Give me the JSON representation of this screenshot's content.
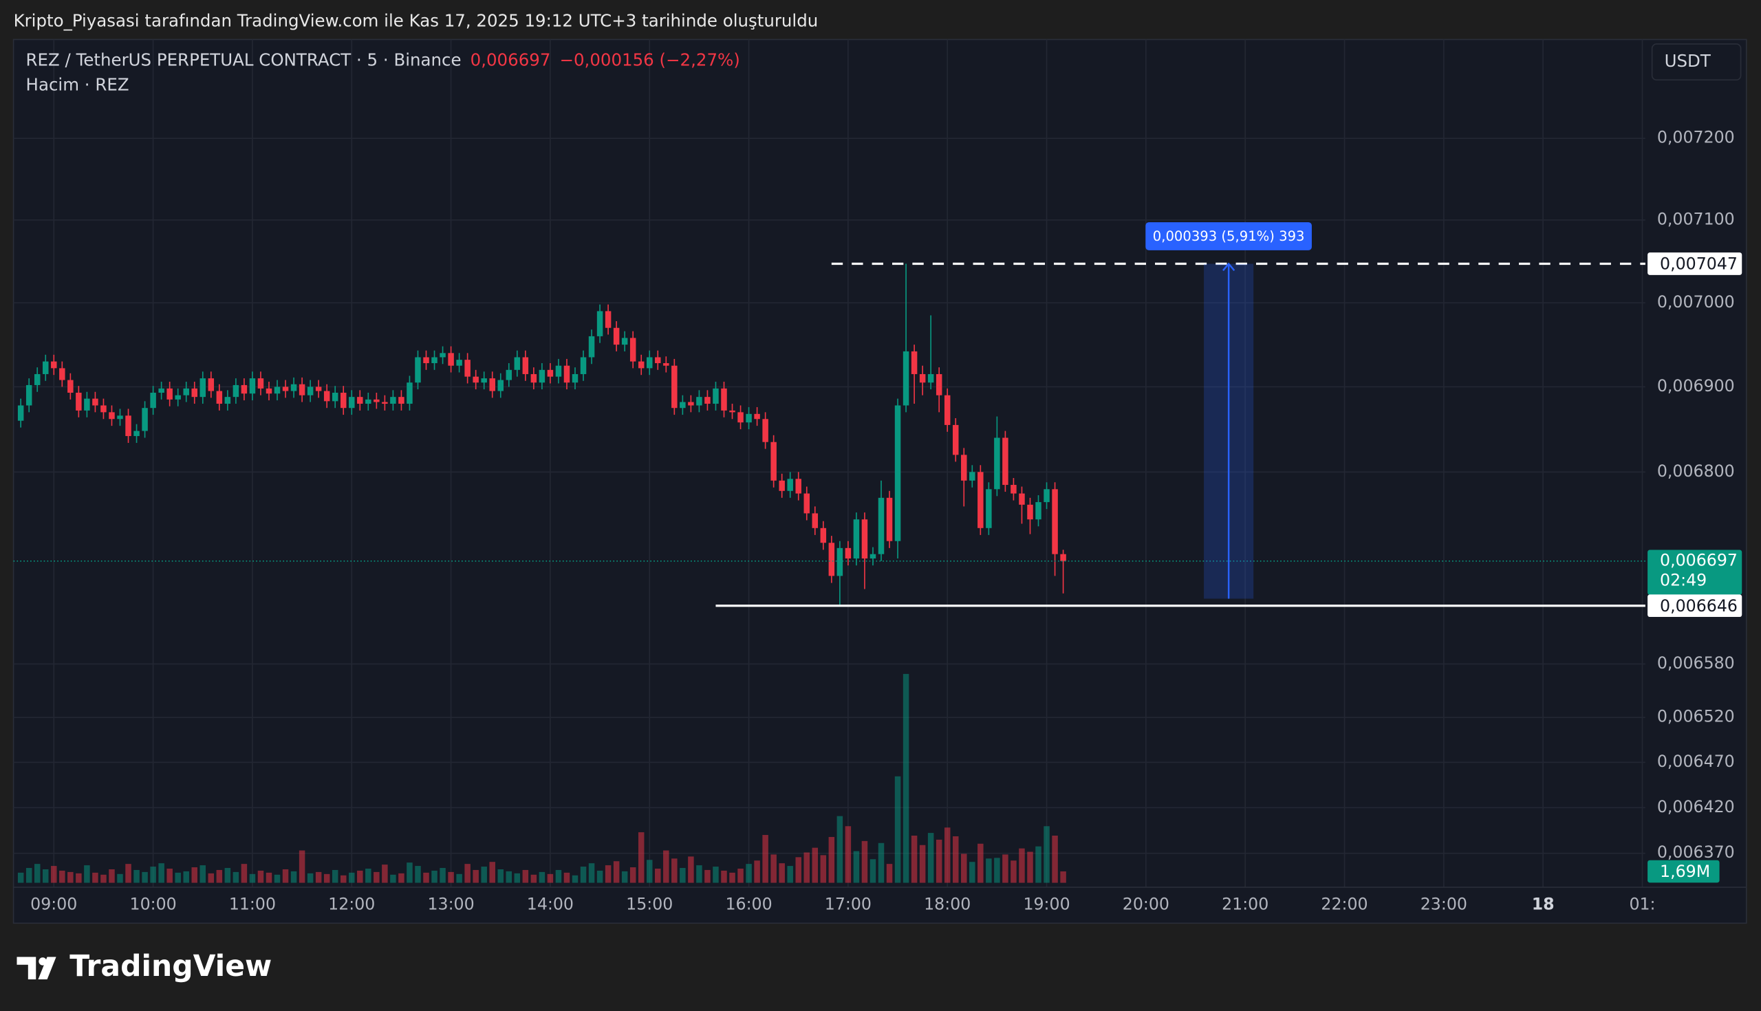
{
  "header": {
    "caption": "Kripto_Piyasasi tarafından TradingView.com ile Kas 17, 2025 19:12 UTC+3 tarihinde oluşturuldu"
  },
  "footer": {
    "brand": "TradingView"
  },
  "chart_data": {
    "type": "candlestick",
    "legend": {
      "symbol": "REZ / TetherUS PERPETUAL CONTRACT · 5 · Binance",
      "change": "−0,000156 (−2,27%)",
      "volume_title": "Hacim · REZ"
    },
    "currency": "USDT",
    "log_scale": true,
    "grid": true,
    "up_color": "#089981",
    "down_color": "#f23645",
    "xlim": [
      515.6,
      1501.8
    ],
    "xticks": [
      {
        "value": 540,
        "label": "09:00"
      },
      {
        "value": 600,
        "label": "10:00"
      },
      {
        "value": 660,
        "label": "11:00"
      },
      {
        "value": 720,
        "label": "12:00"
      },
      {
        "value": 780,
        "label": "13:00"
      },
      {
        "value": 840,
        "label": "14:00"
      },
      {
        "value": 900,
        "label": "15:00"
      },
      {
        "value": 960,
        "label": "16:00"
      },
      {
        "value": 1020,
        "label": "17:00"
      },
      {
        "value": 1080,
        "label": "18:00"
      },
      {
        "value": 1140,
        "label": "19:00"
      },
      {
        "value": 1200,
        "label": "20:00"
      },
      {
        "value": 1260,
        "label": "21:00"
      },
      {
        "value": 1320,
        "label": "22:00"
      },
      {
        "value": 1380,
        "label": "23:00"
      },
      {
        "value": 1440,
        "label": "18"
      },
      {
        "value": 1500,
        "label": "01:"
      }
    ],
    "ylim": [
      0.006333,
      0.007323
    ],
    "yticks": [
      {
        "value": 0.0072,
        "label": "0,007200"
      },
      {
        "value": 0.0071,
        "label": "0,007100"
      },
      {
        "value": 0.007,
        "label": "0,007000"
      },
      {
        "value": 0.0069,
        "label": "0,006900"
      },
      {
        "value": 0.0068,
        "label": "0,006800"
      },
      {
        "value": 0.00658,
        "label": "0,006580"
      },
      {
        "value": 0.00652,
        "label": "0,006520"
      },
      {
        "value": 0.00647,
        "label": "0,006470"
      },
      {
        "value": 0.00642,
        "label": "0,006420"
      },
      {
        "value": 0.00637,
        "label": "0,006370"
      }
    ],
    "x": [
      520,
      525,
      530,
      535,
      540,
      545,
      550,
      555,
      560,
      565,
      570,
      575,
      580,
      585,
      590,
      595,
      600,
      605,
      610,
      615,
      620,
      625,
      630,
      635,
      640,
      645,
      650,
      655,
      660,
      665,
      670,
      675,
      680,
      685,
      690,
      695,
      700,
      705,
      710,
      715,
      720,
      725,
      730,
      735,
      740,
      745,
      750,
      755,
      760,
      765,
      770,
      775,
      780,
      785,
      790,
      795,
      800,
      805,
      810,
      815,
      820,
      825,
      830,
      835,
      840,
      845,
      850,
      855,
      860,
      865,
      870,
      875,
      880,
      885,
      890,
      895,
      900,
      905,
      910,
      915,
      920,
      925,
      930,
      935,
      940,
      945,
      950,
      955,
      960,
      965,
      970,
      975,
      980,
      985,
      990,
      995,
      1000,
      1005,
      1010,
      1015,
      1020,
      1025,
      1030,
      1035,
      1040,
      1045,
      1050,
      1055,
      1060,
      1065,
      1070,
      1075,
      1080,
      1085,
      1090,
      1095,
      1100,
      1105,
      1110,
      1115,
      1120,
      1125,
      1130,
      1135,
      1140,
      1145,
      1150
    ],
    "open": [
      0.00686,
      0.006878,
      0.006902,
      0.006915,
      0.00693,
      0.006922,
      0.006908,
      0.006893,
      0.006872,
      0.006886,
      0.006878,
      0.00687,
      0.006862,
      0.006866,
      0.006842,
      0.006848,
      0.006875,
      0.006893,
      0.006898,
      0.006885,
      0.00689,
      0.006898,
      0.006888,
      0.00691,
      0.006895,
      0.00688,
      0.006888,
      0.006902,
      0.006892,
      0.00691,
      0.006898,
      0.006892,
      0.0069,
      0.006895,
      0.006903,
      0.00689,
      0.0069,
      0.006895,
      0.006883,
      0.006893,
      0.006875,
      0.006888,
      0.00688,
      0.006885,
      0.006882,
      0.00688,
      0.006888,
      0.00688,
      0.006905,
      0.006935,
      0.006928,
      0.006935,
      0.00694,
      0.006925,
      0.006932,
      0.006912,
      0.006905,
      0.00691,
      0.006895,
      0.006908,
      0.00692,
      0.006935,
      0.006915,
      0.006905,
      0.00692,
      0.006912,
      0.006925,
      0.006905,
      0.006915,
      0.006935,
      0.00696,
      0.00699,
      0.00697,
      0.00695,
      0.006958,
      0.00693,
      0.006922,
      0.006935,
      0.006928,
      0.006925,
      0.006875,
      0.006882,
      0.006878,
      0.006888,
      0.00688,
      0.006898,
      0.006872,
      0.00687,
      0.006858,
      0.006868,
      0.006862,
      0.006835,
      0.00679,
      0.006778,
      0.006792,
      0.006775,
      0.006752,
      0.006735,
      0.006718,
      0.00668,
      0.006712,
      0.0067,
      0.006745,
      0.0067,
      0.006705,
      0.00677,
      0.00672,
      0.006878,
      0.006942,
      0.006915,
      0.006905,
      0.006915,
      0.00689,
      0.006855,
      0.00682,
      0.00679,
      0.0068,
      0.006735,
      0.00678,
      0.00684,
      0.006785,
      0.006775,
      0.006762,
      0.006745,
      0.006765,
      0.00678,
      0.006705
    ],
    "high": [
      0.006886,
      0.00691,
      0.006923,
      0.006938,
      0.006938,
      0.00693,
      0.006916,
      0.006901,
      0.006894,
      0.006894,
      0.006886,
      0.006878,
      0.006874,
      0.006874,
      0.006856,
      0.006883,
      0.006901,
      0.006906,
      0.006906,
      0.006898,
      0.006906,
      0.006906,
      0.006918,
      0.006918,
      0.006903,
      0.006896,
      0.00691,
      0.00691,
      0.006918,
      0.006918,
      0.006906,
      0.006908,
      0.006908,
      0.006911,
      0.006911,
      0.006908,
      0.006908,
      0.006903,
      0.006901,
      0.006901,
      0.006896,
      0.006896,
      0.006893,
      0.006893,
      0.00689,
      0.006896,
      0.006896,
      0.006913,
      0.006943,
      0.006943,
      0.006943,
      0.006948,
      0.006948,
      0.00694,
      0.00694,
      0.00692,
      0.006918,
      0.006918,
      0.006916,
      0.006928,
      0.006943,
      0.006943,
      0.006923,
      0.006928,
      0.006928,
      0.006933,
      0.006933,
      0.006923,
      0.006943,
      0.006968,
      0.006998,
      0.006998,
      0.006978,
      0.006966,
      0.006966,
      0.006938,
      0.006943,
      0.006943,
      0.006936,
      0.006933,
      0.00689,
      0.00689,
      0.006896,
      0.006896,
      0.006906,
      0.006906,
      0.00688,
      0.006878,
      0.006876,
      0.006876,
      0.00687,
      0.006843,
      0.006798,
      0.0068,
      0.0068,
      0.006783,
      0.00676,
      0.006743,
      0.006726,
      0.00672,
      0.00672,
      0.006753,
      0.006753,
      0.006713,
      0.00679,
      0.006778,
      0.006886,
      0.007047,
      0.00695,
      0.006925,
      0.006985,
      0.006923,
      0.006898,
      0.006863,
      0.006828,
      0.006808,
      0.006808,
      0.006788,
      0.006865,
      0.006848,
      0.006793,
      0.006783,
      0.00677,
      0.006773,
      0.006788,
      0.006788,
      0.00671
    ],
    "low": [
      0.006852,
      0.00687,
      0.006894,
      0.006907,
      0.006914,
      0.0069,
      0.006885,
      0.006864,
      0.006864,
      0.00687,
      0.006862,
      0.006854,
      0.006854,
      0.006834,
      0.006834,
      0.00684,
      0.006867,
      0.006885,
      0.006877,
      0.006877,
      0.006882,
      0.00688,
      0.00688,
      0.006887,
      0.006872,
      0.006872,
      0.00688,
      0.006884,
      0.006884,
      0.00689,
      0.006884,
      0.006884,
      0.006887,
      0.006887,
      0.006882,
      0.006882,
      0.006887,
      0.006875,
      0.006875,
      0.006867,
      0.006867,
      0.006872,
      0.006872,
      0.006874,
      0.006872,
      0.006872,
      0.006872,
      0.006872,
      0.006897,
      0.00692,
      0.00692,
      0.006927,
      0.006917,
      0.006917,
      0.006904,
      0.006897,
      0.006897,
      0.006887,
      0.006887,
      0.0069,
      0.006912,
      0.006907,
      0.006897,
      0.006897,
      0.006904,
      0.006904,
      0.006897,
      0.006897,
      0.006907,
      0.006927,
      0.006952,
      0.006962,
      0.006942,
      0.006942,
      0.006922,
      0.006914,
      0.006914,
      0.00692,
      0.006917,
      0.006867,
      0.006867,
      0.00687,
      0.00687,
      0.006872,
      0.006872,
      0.006864,
      0.006862,
      0.00685,
      0.00685,
      0.006854,
      0.006827,
      0.006782,
      0.00677,
      0.00677,
      0.006767,
      0.006744,
      0.006727,
      0.00671,
      0.006672,
      0.006646,
      0.006692,
      0.006692,
      0.006665,
      0.006692,
      0.006697,
      0.006712,
      0.0067,
      0.00687,
      0.00688,
      0.00689,
      0.006897,
      0.00687,
      0.006847,
      0.006812,
      0.00676,
      0.006782,
      0.006727,
      0.006727,
      0.006772,
      0.006777,
      0.006767,
      0.00674,
      0.006728,
      0.006737,
      0.006757,
      0.00668,
      0.00666
    ],
    "close": [
      0.006878,
      0.006902,
      0.006915,
      0.00693,
      0.006922,
      0.006908,
      0.006893,
      0.006872,
      0.006886,
      0.006878,
      0.00687,
      0.006862,
      0.006866,
      0.006842,
      0.006848,
      0.006875,
      0.006893,
      0.006898,
      0.006885,
      0.00689,
      0.006898,
      0.006888,
      0.00691,
      0.006895,
      0.00688,
      0.006888,
      0.006902,
      0.006892,
      0.00691,
      0.006898,
      0.006892,
      0.0069,
      0.006895,
      0.006903,
      0.00689,
      0.0069,
      0.006895,
      0.006883,
      0.006893,
      0.006875,
      0.006888,
      0.00688,
      0.006885,
      0.006882,
      0.00688,
      0.006888,
      0.00688,
      0.006905,
      0.006935,
      0.006928,
      0.006935,
      0.00694,
      0.006925,
      0.006932,
      0.006912,
      0.006905,
      0.00691,
      0.006895,
      0.006908,
      0.00692,
      0.006935,
      0.006915,
      0.006905,
      0.00692,
      0.006912,
      0.006925,
      0.006905,
      0.006915,
      0.006935,
      0.00696,
      0.00699,
      0.00697,
      0.00695,
      0.006958,
      0.00693,
      0.006922,
      0.006935,
      0.006928,
      0.006925,
      0.006875,
      0.006882,
      0.006878,
      0.006888,
      0.00688,
      0.006898,
      0.006872,
      0.00687,
      0.006858,
      0.006868,
      0.006862,
      0.006835,
      0.00679,
      0.006778,
      0.006792,
      0.006775,
      0.006752,
      0.006735,
      0.006718,
      0.00668,
      0.006712,
      0.0067,
      0.006745,
      0.0067,
      0.006705,
      0.00677,
      0.00672,
      0.006878,
      0.006942,
      0.006915,
      0.006905,
      0.006915,
      0.00689,
      0.006855,
      0.00682,
      0.00679,
      0.0068,
      0.006735,
      0.00678,
      0.00684,
      0.006785,
      0.006775,
      0.006762,
      0.006745,
      0.006765,
      0.00678,
      0.006705,
      0.006697
    ],
    "volume": {
      "ylim": [
        0,
        40000000
      ],
      "last_label": "1,69M",
      "values": [
        1500000,
        2200000,
        2800000,
        2000000,
        2500000,
        1800000,
        1600000,
        1400000,
        2600000,
        1500000,
        1200000,
        2000000,
        1300000,
        2800000,
        1900000,
        1600000,
        2400000,
        2900000,
        2100000,
        1500000,
        1700000,
        2300000,
        2600000,
        1400000,
        1900000,
        2200000,
        1600000,
        2800000,
        1300000,
        1800000,
        1500000,
        1200000,
        2000000,
        1700000,
        4800000,
        1400000,
        1600000,
        1300000,
        1900000,
        1100000,
        1500000,
        1800000,
        2100000,
        1600000,
        2700000,
        1200000,
        1400000,
        3000000,
        2500000,
        1500000,
        1800000,
        2200000,
        1600000,
        1300000,
        2800000,
        1900000,
        2400000,
        3100000,
        2000000,
        1700000,
        1400000,
        1900000,
        1200000,
        1600000,
        1300000,
        1900000,
        1500000,
        1100000,
        2400000,
        2900000,
        1800000,
        2600000,
        3200000,
        1700000,
        2300000,
        7500000,
        3400000,
        2100000,
        4800000,
        3600000,
        2200000,
        3900000,
        2600000,
        1900000,
        2400000,
        1800000,
        1500000,
        2100000,
        2800000,
        3300000,
        7100000,
        4200000,
        2900000,
        2500000,
        3800000,
        4500000,
        5200000,
        4100000,
        6800000,
        9900000,
        8400000,
        4700000,
        6200000,
        3500000,
        5900000,
        2800000,
        15800000,
        31000000,
        7000000,
        5600000,
        7400000,
        6400000,
        8200000,
        6900000,
        4300000,
        3100000,
        5800000,
        3600000,
        3700000,
        4200000,
        3300000,
        5100000,
        4600000,
        5400000,
        8400000,
        7000000,
        1690000
      ]
    },
    "last_price": {
      "value": 0.006697,
      "label": "0,006697",
      "countdown": "02:49",
      "color": "#089981"
    },
    "price_lines": [
      {
        "value": 0.007047,
        "label": "0,007047",
        "style": "dashed",
        "x_start": 1010
      },
      {
        "value": 0.006646,
        "label": "0,006646",
        "style": "solid",
        "x_start": 940
      }
    ],
    "measure": {
      "from": 0.006654,
      "to": 0.007047,
      "x_start": 1235,
      "x_end": 1265,
      "label": "0,000393 (5,91%) 393",
      "color": "#2962ff"
    }
  }
}
